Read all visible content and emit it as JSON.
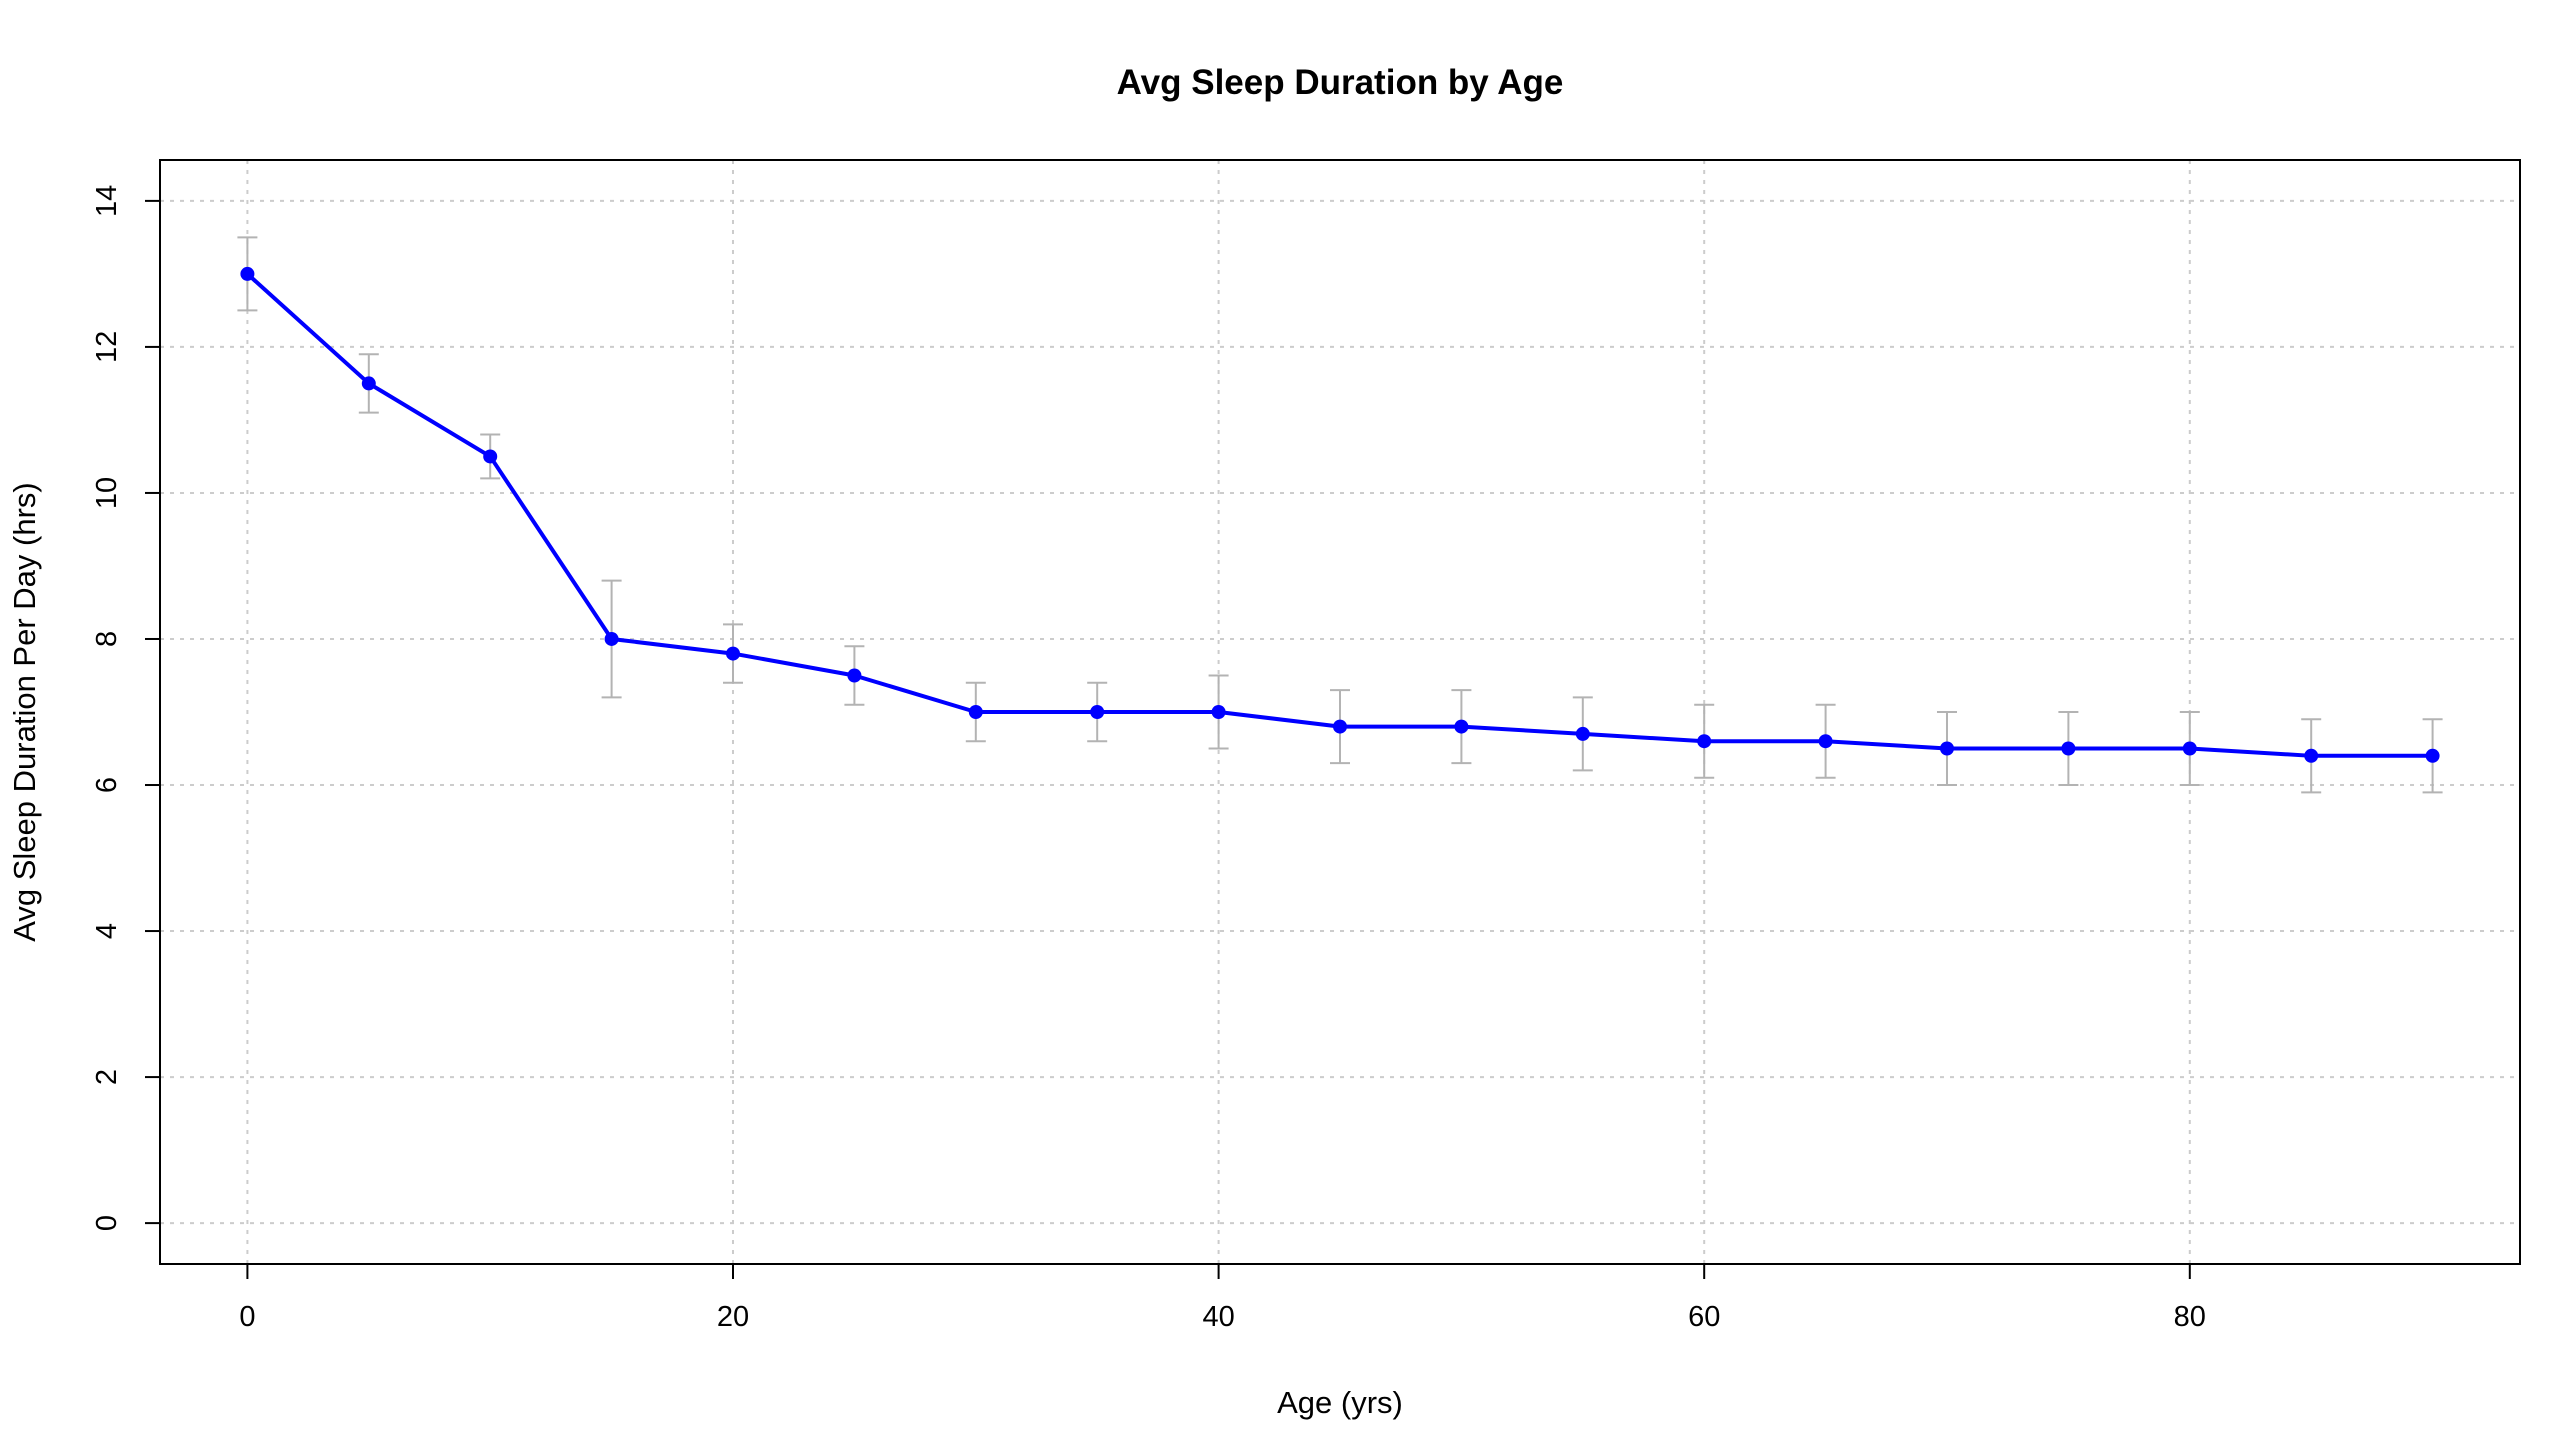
{
  "chart_data": {
    "type": "line",
    "title": "Avg Sleep Duration by Age",
    "xlabel": "Age (yrs)",
    "ylabel": "Avg Sleep Duration Per Day (hrs)",
    "xlim": [
      -3.6,
      93.6
    ],
    "ylim": [
      -0.56,
      14.56
    ],
    "x_ticks": [
      0,
      20,
      40,
      60,
      80
    ],
    "y_ticks": [
      0,
      2,
      4,
      6,
      8,
      10,
      12,
      14
    ],
    "grid": true,
    "series": [
      {
        "color": "#0000ff",
        "error_bar_color": "#b3b3b3",
        "x": [
          0,
          5,
          10,
          15,
          20,
          25,
          30,
          35,
          40,
          45,
          50,
          55,
          60,
          65,
          70,
          75,
          80,
          85,
          90
        ],
        "y": [
          13.0,
          11.5,
          10.5,
          8.0,
          7.8,
          7.5,
          7.0,
          7.0,
          7.0,
          6.8,
          6.8,
          6.7,
          6.6,
          6.6,
          6.5,
          6.5,
          6.5,
          6.4,
          6.4
        ],
        "y_lower": [
          12.5,
          11.1,
          10.2,
          7.2,
          7.4,
          7.1,
          6.6,
          6.6,
          6.5,
          6.3,
          6.3,
          6.2,
          6.1,
          6.1,
          6.0,
          6.0,
          6.0,
          5.9,
          5.9
        ],
        "y_upper": [
          13.5,
          11.9,
          10.8,
          8.8,
          8.2,
          7.9,
          7.4,
          7.4,
          7.5,
          7.3,
          7.3,
          7.2,
          7.1,
          7.1,
          7.0,
          7.0,
          7.0,
          6.9,
          6.9
        ]
      }
    ]
  }
}
